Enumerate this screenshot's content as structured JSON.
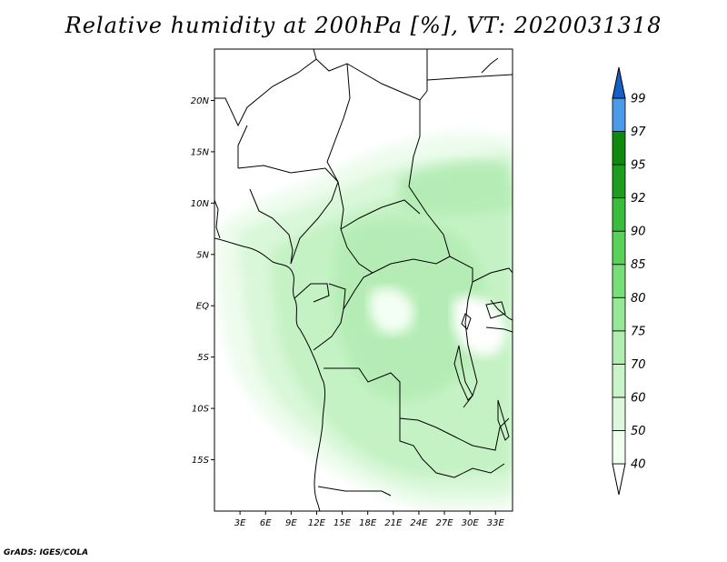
{
  "title": "Relative humidity at 200hPa [%], VT: 2020031318",
  "credit": "GrADS: IGES/COLA",
  "map": {
    "lat_labels": [
      "20N",
      "15N",
      "10N",
      "5N",
      "EQ",
      "5S",
      "10S",
      "15S"
    ],
    "lat_values": [
      20,
      15,
      10,
      5,
      0,
      -5,
      -10,
      -15
    ],
    "lon_labels": [
      "3E",
      "6E",
      "9E",
      "12E",
      "15E",
      "18E",
      "21E",
      "24E",
      "27E",
      "30E",
      "33E"
    ],
    "lon_values": [
      3,
      6,
      9,
      12,
      15,
      18,
      21,
      24,
      27,
      30,
      33
    ],
    "lon_range": [
      0,
      35
    ],
    "lat_range": [
      -20,
      25
    ]
  },
  "colorbar": {
    "labels": [
      "40",
      "50",
      "60",
      "70",
      "75",
      "80",
      "85",
      "90",
      "92",
      "95",
      "97",
      "99"
    ],
    "colors": [
      "#f0fff0",
      "#dcf8dc",
      "#c8f4c8",
      "#b2eeb2",
      "#96e796",
      "#78de78",
      "#5ad25a",
      "#3cbc3c",
      "#1e9c1e",
      "#0f8a0f",
      "#4a9ae8",
      "#2a78d8",
      "#1460c8"
    ]
  },
  "colors": {
    "rh_40": "#f0fff0",
    "rh_50": "#dcf8dc",
    "rh_60": "#c8f4c8",
    "rh_70": "#b2eeb2",
    "border": "#000000"
  }
}
